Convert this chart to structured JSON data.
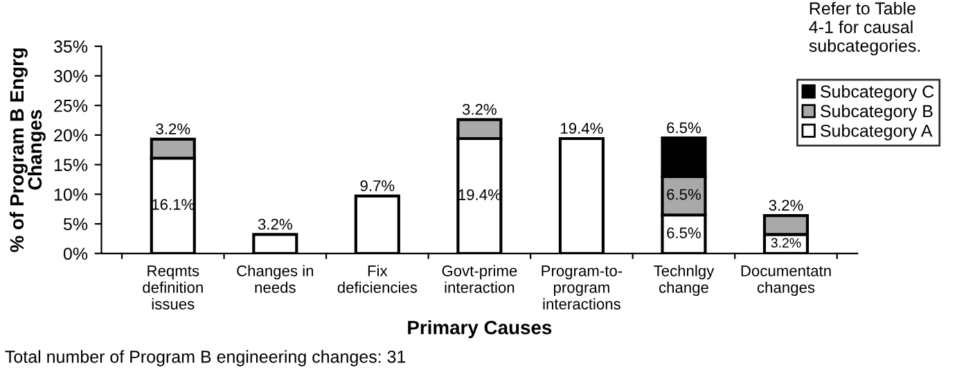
{
  "chart_data": {
    "type": "bar",
    "stacked": true,
    "xlabel": "Primary Causes",
    "ylabel": "% of Program B Engrg\nChanges",
    "categories": [
      "Reqmts\ndefinition\nissues",
      "Changes in\nneeds",
      "Fix\ndeficiencies",
      "Govt-prime\ninteraction",
      "Program-to-\nprogram\ninteractions",
      "Technlgy\nchange",
      "Documentatn\nchanges"
    ],
    "series": [
      {
        "name": "Subcategory A",
        "color": "#ffffff",
        "values": [
          16.1,
          3.2,
          9.7,
          19.4,
          19.4,
          6.5,
          3.2
        ],
        "value_labels": [
          "16.1%",
          "3.2%",
          "9.7%",
          "19.4%",
          "19.4%",
          "6.5%",
          "3.2%"
        ]
      },
      {
        "name": "Subcategory B",
        "color": "#a9a9a9",
        "values": [
          3.2,
          0,
          0,
          3.2,
          0,
          6.5,
          3.2
        ],
        "value_labels": [
          "3.2%",
          null,
          null,
          "3.2%",
          null,
          "6.5%",
          "3.2%"
        ]
      },
      {
        "name": "Subcategory C",
        "color": "#000000",
        "values": [
          0,
          0,
          0,
          0,
          0,
          6.5,
          0
        ],
        "value_labels": [
          null,
          null,
          null,
          null,
          null,
          "6.5%",
          null
        ]
      }
    ],
    "ylim": [
      0,
      35
    ],
    "yticks": [
      {
        "value": 0,
        "label": "0%"
      },
      {
        "value": 5,
        "label": "5%"
      },
      {
        "value": 10,
        "label": "10%"
      },
      {
        "value": 15,
        "label": "15%"
      },
      {
        "value": 20,
        "label": "20%"
      },
      {
        "value": 25,
        "label": "25%"
      },
      {
        "value": 30,
        "label": "30%"
      },
      {
        "value": 35,
        "label": "35%"
      }
    ],
    "grid": false,
    "legend": "top right",
    "annotations": [
      "Refer to Table\n4-1 for causal\nsubcategories.",
      "Total number of Program B engineering changes: 31"
    ]
  }
}
